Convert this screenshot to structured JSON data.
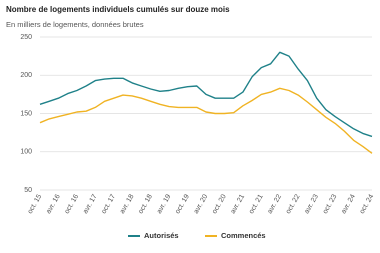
{
  "chart_data": {
    "type": "line",
    "title": "Nombre de logements individuels cumulés sur douze mois",
    "subtitle": "En milliers de logements, données brutes",
    "categories": [
      "oct. 15",
      null,
      "avr. 16",
      null,
      "oct. 16",
      null,
      "avr. 17",
      null,
      "oct. 17",
      null,
      "avr. 18",
      null,
      "oct. 18",
      null,
      "avr. 19",
      null,
      "oct. 19",
      null,
      "avr. 20",
      null,
      "oct. 20",
      null,
      "avr. 21",
      null,
      "oct. 21",
      null,
      "avr. 22",
      null,
      "oct. 22",
      null,
      "avr. 23",
      null,
      "oct. 23",
      null,
      "avr. 24",
      null,
      "oct. 24"
    ],
    "series": [
      {
        "name": "Autorisés",
        "color": "#1f8189",
        "values": [
          162,
          166,
          170,
          176,
          180,
          186,
          193,
          195,
          196,
          196,
          190,
          186,
          182,
          179,
          180,
          183,
          185,
          186,
          175,
          170,
          170,
          170,
          178,
          198,
          210,
          215,
          230,
          225,
          208,
          193,
          170,
          155,
          146,
          138,
          130,
          124,
          120
        ]
      },
      {
        "name": "Commencés",
        "color": "#f0b323",
        "values": [
          138,
          143,
          146,
          149,
          152,
          153,
          158,
          166,
          170,
          174,
          173,
          170,
          166,
          162,
          159,
          158,
          158,
          158,
          152,
          150,
          150,
          151,
          160,
          167,
          175,
          178,
          183,
          180,
          174,
          165,
          155,
          145,
          137,
          127,
          115,
          107,
          98
        ]
      }
    ],
    "ylim": [
      50,
      250
    ],
    "yticks": [
      50,
      100,
      150,
      200,
      250
    ],
    "grid": true,
    "legend": "bottom"
  }
}
